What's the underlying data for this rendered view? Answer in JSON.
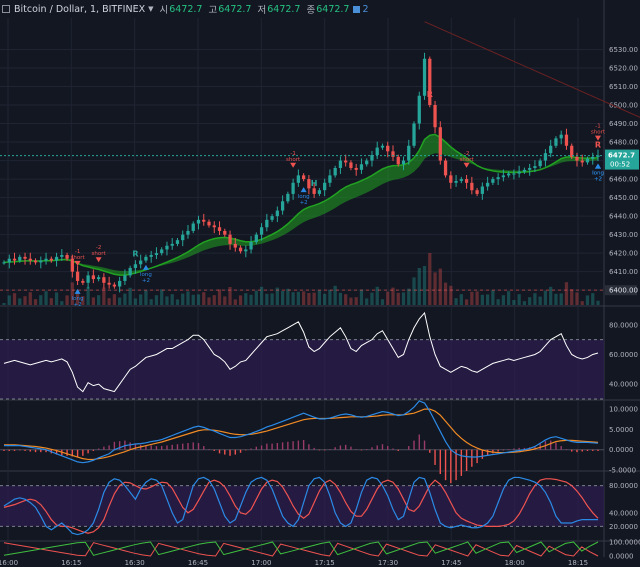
{
  "header": {
    "symbol": "Bitcoin / Dollar, 1, BITFINEX",
    "ohlc": [
      {
        "label": "시",
        "value": "6472.7"
      },
      {
        "label": "고",
        "value": "6472.7"
      },
      {
        "label": "저",
        "value": "6472.7"
      },
      {
        "label": "종",
        "value": "6472.7"
      }
    ],
    "indicator_count": "2"
  },
  "colors": {
    "background": "#131722",
    "up": "#26a69a",
    "down": "#ef5350",
    "grid": "#1f2433",
    "ema_green": "#21a321",
    "ema_red": "#d42a2a",
    "rsi": "#ffffff",
    "rsi_band": "#2a1d4b",
    "macd": "#2b8ae6",
    "signal": "#f08a24",
    "stoch_k": "#2b8ae6",
    "stoch_d": "#ef5350",
    "price_label": "#26a69a",
    "signal_buy": "#2b8ae6",
    "signal_sell": "#ef5350",
    "axis_text": "#b2b5be"
  },
  "chart_data": [
    {
      "type": "candlestick",
      "ylim": [
        6392,
        6547
      ],
      "y_ticks": [
        "6530.00",
        "6520.00",
        "6510.00",
        "6500.00",
        "6490.00",
        "6480.00",
        "6470.00",
        "6460.00",
        "6450.00",
        "6440.00",
        "6430.00",
        "6420.00",
        "6410.00",
        "6400.00"
      ],
      "x_ticks": [
        "16:00",
        "16:15",
        "16:30",
        "16:45",
        "17:00",
        "17:15",
        "17:30",
        "17:45",
        "18:00",
        "18:15"
      ],
      "last_price": {
        "label": "6472.7",
        "sub": "00:52",
        "value": 6472.7
      },
      "ref_line": {
        "label": "6400.00",
        "value": 6400
      },
      "close": [
        6415,
        6417,
        6416,
        6418,
        6417,
        6416,
        6415,
        6416,
        6417,
        6416,
        6418,
        6419,
        6417,
        6410,
        6405,
        6404,
        6408,
        6406,
        6407,
        6404,
        6403,
        6402,
        6405,
        6408,
        6412,
        6414,
        6416,
        6418,
        6419,
        6420,
        6422,
        6424,
        6425,
        6427,
        6430,
        6432,
        6436,
        6438,
        6437,
        6435,
        6434,
        6432,
        6430,
        6425,
        6423,
        6421,
        6422,
        6426,
        6430,
        6434,
        6438,
        6440,
        6443,
        6448,
        6452,
        6458,
        6462,
        6460,
        6455,
        6452,
        6454,
        6458,
        6462,
        6466,
        6470,
        6469,
        6466,
        6465,
        6468,
        6470,
        6473,
        6477,
        6478,
        6475,
        6472,
        6468,
        6470,
        6478,
        6490,
        6505,
        6525,
        6500,
        6488,
        6470,
        6462,
        6458,
        6459,
        6460,
        6458,
        6454,
        6452,
        6456,
        6458,
        6460,
        6461,
        6462,
        6463,
        6463,
        6464,
        6465,
        6466,
        6467,
        6470,
        6474,
        6478,
        6482,
        6484,
        6478,
        6472,
        6470,
        6469,
        6471,
        6472,
        6472.7
      ],
      "signals": [
        {
          "kind": "sell",
          "label": "short",
          "sub": "-1",
          "i": 14
        },
        {
          "kind": "sell",
          "label": "short",
          "sub": "-2",
          "i": 18
        },
        {
          "kind": "buy",
          "label": "long",
          "sub": "+2",
          "i": 14
        },
        {
          "kind": "buy",
          "label": "long",
          "sub": "+2",
          "i": 27
        },
        {
          "kind": "sell",
          "label": "short",
          "sub": "-1",
          "i": 55
        },
        {
          "kind": "buy",
          "label": "long",
          "sub": "+2",
          "i": 57
        },
        {
          "kind": "sell",
          "label": "short",
          "sub": "-2",
          "i": 88
        },
        {
          "kind": "buy",
          "label": "long",
          "sub": "+2",
          "i": 115
        },
        {
          "kind": "sell",
          "label": "short",
          "sub": "-1",
          "i": 122
        },
        {
          "kind": "buy",
          "label": "long",
          "sub": "+2",
          "i": 128
        }
      ],
      "markers": [
        {
          "text": "R",
          "i": 81,
          "color": "#ef5350"
        },
        {
          "text": "R",
          "i": 124,
          "color": "#ef5350"
        },
        {
          "text": "R",
          "i": 25,
          "color": "#26a69a"
        },
        {
          "text": "H",
          "i": 59,
          "color": "#26a69a"
        }
      ]
    },
    {
      "type": "line",
      "name": "RSI",
      "ylim": [
        30,
        92
      ],
      "y_ticks": [
        "80.0000",
        "60.0000",
        "40.0000"
      ],
      "levels": [
        70,
        30
      ],
      "values": [
        54,
        55,
        56,
        55,
        54,
        53,
        54,
        55,
        56,
        55,
        56,
        57,
        55,
        48,
        38,
        35,
        41,
        39,
        40,
        37,
        36,
        35,
        40,
        45,
        50,
        52,
        55,
        58,
        59,
        60,
        62,
        64,
        64,
        66,
        68,
        70,
        73,
        73,
        70,
        65,
        60,
        58,
        55,
        50,
        52,
        55,
        56,
        60,
        64,
        68,
        72,
        73,
        74,
        76,
        78,
        80,
        82,
        75,
        65,
        62,
        64,
        68,
        72,
        75,
        78,
        72,
        64,
        62,
        66,
        68,
        70,
        74,
        76,
        70,
        64,
        58,
        60,
        70,
        78,
        84,
        88,
        72,
        60,
        52,
        50,
        48,
        50,
        52,
        51,
        49,
        48,
        50,
        52,
        54,
        55,
        56,
        57,
        56,
        57,
        58,
        59,
        60,
        62,
        66,
        70,
        72,
        74,
        66,
        60,
        58,
        57,
        58,
        60,
        61
      ]
    },
    {
      "type": "line",
      "name": "MACD",
      "ylim": [
        -5,
        12
      ],
      "y_ticks": [
        "10.0000",
        "5.0000",
        "0.0000",
        "-5.0000"
      ],
      "macd": [
        1,
        1,
        1,
        1,
        0.8,
        0.6,
        0.4,
        0.2,
        0,
        -0.5,
        -1,
        -1.5,
        -2,
        -2.5,
        -3,
        -3.2,
        -3,
        -2.6,
        -2,
        -1.5,
        -1,
        0,
        0.5,
        1,
        1.2,
        1.4,
        1.5,
        1.7,
        2,
        2.2,
        2.5,
        3,
        3.5,
        4,
        4.5,
        5,
        5.5,
        5.8,
        5.5,
        5,
        4.6,
        4,
        3.5,
        3,
        3,
        3.2,
        3.6,
        4,
        4.5,
        5,
        5.6,
        6,
        6.5,
        7,
        7.5,
        8,
        8.5,
        9,
        8.5,
        8,
        7.6,
        7.6,
        7.8,
        8.2,
        8.6,
        8.8,
        8.6,
        8.2,
        8,
        8.2,
        8.6,
        9,
        9.4,
        9.2,
        8.8,
        8.4,
        8.6,
        9.4,
        10.5,
        12,
        11.5,
        9.5,
        7,
        4.5,
        2,
        0,
        -1,
        -1.5,
        -1.7,
        -1.8,
        -1.8,
        -1.6,
        -1.4,
        -1.2,
        -1,
        -0.8,
        -0.6,
        -0.4,
        -0.2,
        0,
        0.3,
        0.8,
        1.6,
        2.4,
        3,
        3.2,
        2.8,
        2.4,
        2,
        1.8,
        1.8,
        1.8,
        1.7,
        1.6
      ],
      "signal": [
        1.2,
        1.2,
        1.2,
        1.1,
        1,
        0.9,
        0.8,
        0.6,
        0.4,
        0.1,
        -0.2,
        -0.6,
        -1,
        -1.4,
        -1.8,
        -2.2,
        -2.4,
        -2.4,
        -2.2,
        -2,
        -1.7,
        -1.3,
        -0.9,
        -0.5,
        0,
        0.4,
        0.7,
        1,
        1.3,
        1.6,
        1.9,
        2.3,
        2.7,
        3.1,
        3.5,
        3.9,
        4.3,
        4.7,
        4.9,
        4.9,
        4.8,
        4.6,
        4.3,
        4,
        3.8,
        3.7,
        3.7,
        3.8,
        4,
        4.3,
        4.6,
        5,
        5.4,
        5.8,
        6.2,
        6.6,
        7,
        7.4,
        7.6,
        7.7,
        7.7,
        7.7,
        7.7,
        7.8,
        7.9,
        8,
        8.1,
        8.1,
        8.1,
        8.1,
        8.2,
        8.3,
        8.5,
        8.6,
        8.6,
        8.6,
        8.6,
        8.8,
        9,
        9.5,
        10,
        10,
        9.5,
        8.5,
        7,
        5.5,
        4,
        2.8,
        1.8,
        1,
        0.4,
        -0.1,
        -0.4,
        -0.6,
        -0.7,
        -0.7,
        -0.7,
        -0.6,
        -0.5,
        -0.3,
        -0.1,
        0.2,
        0.6,
        1,
        1.5,
        2,
        2.2,
        2.3,
        2.3,
        2.2,
        2.1,
        2,
        1.9,
        1.8
      ]
    },
    {
      "type": "line",
      "name": "Stochastic RSI",
      "ylim": [
        0,
        100
      ],
      "y_ticks": [
        "80.0000",
        "40.0000",
        "20.0000"
      ],
      "levels": [
        80,
        20
      ],
      "k": [
        50,
        55,
        60,
        62,
        60,
        55,
        48,
        35,
        20,
        15,
        20,
        25,
        18,
        10,
        8,
        10,
        15,
        25,
        45,
        70,
        85,
        90,
        88,
        80,
        70,
        60,
        75,
        85,
        90,
        88,
        80,
        60,
        40,
        25,
        30,
        55,
        80,
        90,
        92,
        88,
        75,
        55,
        35,
        25,
        30,
        50,
        70,
        85,
        90,
        92,
        88,
        75,
        55,
        35,
        25,
        20,
        30,
        55,
        80,
        90,
        92,
        85,
        65,
        40,
        25,
        20,
        25,
        45,
        70,
        88,
        92,
        90,
        80,
        65,
        45,
        30,
        35,
        60,
        85,
        92,
        90,
        70,
        45,
        25,
        20,
        18,
        20,
        22,
        20,
        18,
        18,
        20,
        25,
        35,
        55,
        75,
        88,
        92,
        92,
        90,
        88,
        85,
        80,
        70,
        55,
        35,
        25,
        25,
        25,
        28,
        30,
        30,
        30,
        30
      ],
      "d": [
        48,
        50,
        52,
        55,
        58,
        60,
        58,
        52,
        42,
        30,
        22,
        20,
        20,
        18,
        15,
        12,
        10,
        12,
        18,
        30,
        50,
        68,
        80,
        85,
        84,
        80,
        76,
        75,
        78,
        82,
        85,
        84,
        76,
        62,
        48,
        40,
        45,
        58,
        72,
        85,
        88,
        85,
        78,
        65,
        50,
        40,
        38,
        45,
        60,
        75,
        85,
        88,
        86,
        78,
        65,
        50,
        38,
        32,
        38,
        55,
        72,
        84,
        88,
        82,
        70,
        55,
        42,
        35,
        35,
        45,
        60,
        75,
        85,
        88,
        85,
        75,
        60,
        45,
        42,
        50,
        65,
        80,
        88,
        82,
        70,
        55,
        40,
        32,
        28,
        25,
        22,
        21,
        20,
        20,
        20,
        21,
        23,
        28,
        38,
        52,
        68,
        80,
        88,
        90,
        90,
        89,
        87,
        85,
        80,
        72,
        62,
        50,
        40,
        32
      ]
    },
    {
      "type": "line",
      "name": "Oscillator",
      "ylim": [
        0,
        100
      ],
      "y_ticks": [
        "100.0000",
        "0.0000"
      ],
      "green": [
        5,
        15,
        25,
        35,
        45,
        55,
        65,
        75,
        85,
        95,
        98,
        5,
        20,
        35,
        50,
        65,
        80,
        92,
        100,
        10,
        25,
        40,
        55,
        70,
        85,
        95,
        100,
        10,
        25,
        40,
        55,
        70,
        85,
        100,
        15,
        30,
        45,
        60,
        75,
        90,
        100,
        10,
        30,
        50,
        70,
        90,
        100,
        15,
        35,
        55,
        75,
        95,
        100,
        20,
        40,
        60,
        80,
        100,
        20,
        45,
        70,
        95,
        100,
        25,
        50,
        75,
        100,
        30,
        60,
        90,
        100,
        35,
        70,
        100
      ],
      "red": [
        95,
        85,
        75,
        65,
        55,
        45,
        35,
        25,
        15,
        5,
        2,
        95,
        80,
        65,
        50,
        35,
        20,
        8,
        0,
        90,
        75,
        60,
        45,
        30,
        15,
        5,
        0,
        90,
        75,
        60,
        45,
        30,
        15,
        0,
        85,
        70,
        55,
        40,
        25,
        10,
        0,
        90,
        70,
        50,
        30,
        10,
        0,
        85,
        65,
        45,
        25,
        5,
        0,
        80,
        60,
        40,
        20,
        0,
        80,
        55,
        30,
        5,
        0,
        75,
        50,
        25,
        0,
        70,
        40,
        10,
        0,
        65,
        30,
        0
      ]
    }
  ]
}
